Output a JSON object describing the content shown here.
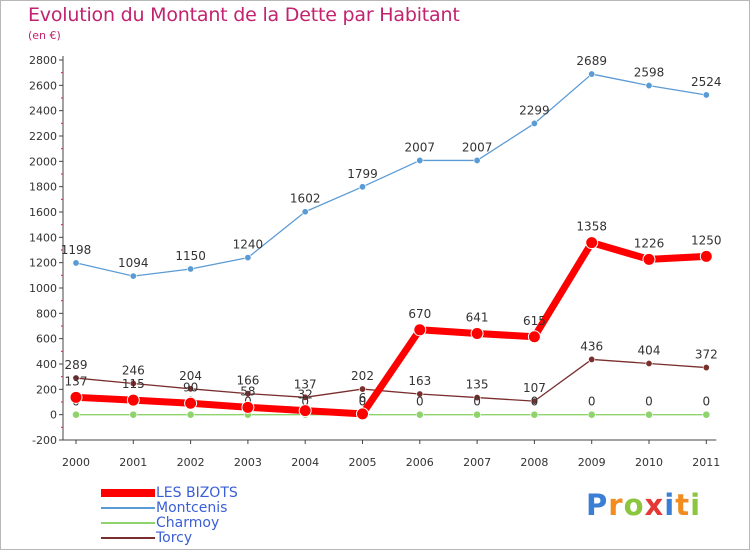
{
  "chart_data": {
    "type": "line",
    "title": "Evolution du Montant de la Dette par Habitant",
    "subtitle": "(en €)",
    "categories": [
      "2000",
      "2001",
      "2002",
      "2003",
      "2004",
      "2005",
      "2006",
      "2007",
      "2008",
      "2009",
      "2010",
      "2011"
    ],
    "ylim": [
      -200,
      2800
    ],
    "yticks": [
      -200,
      0,
      200,
      400,
      600,
      800,
      1000,
      1200,
      1400,
      1600,
      1800,
      2000,
      2200,
      2400,
      2600,
      2800
    ],
    "grid": false,
    "legend_position": "bottom-left",
    "series": [
      {
        "name": "Montcenis",
        "color": "#5b9bd5",
        "values": [
          1198,
          1094,
          1150,
          1240,
          1602,
          1799,
          2007,
          2007,
          2299,
          2689,
          2598,
          2524
        ],
        "labels": [
          "1198",
          "1094",
          "1150",
          "1240",
          "1602",
          "1799",
          "2007",
          "2007",
          "2299",
          "2689",
          "2598",
          "2524"
        ]
      },
      {
        "name": "Torcy",
        "color": "#7a2e2e",
        "values": [
          289,
          246,
          204,
          166,
          137,
          202,
          163,
          135,
          107,
          436,
          404,
          372
        ],
        "labels": [
          "289",
          "246",
          "204",
          "166",
          "137",
          "202",
          "163",
          "135",
          "107",
          "436",
          "404",
          "372"
        ]
      },
      {
        "name": "Charmoy",
        "color": "#8ed36b",
        "values": [
          0,
          0,
          0,
          0,
          0,
          0,
          0,
          0,
          0,
          0,
          0,
          0
        ],
        "labels": [
          "0",
          "0",
          "0",
          "0",
          "0",
          "0",
          "0",
          "0",
          "0",
          "0",
          "0",
          "0"
        ]
      },
      {
        "name": "LES BIZOTS",
        "color": "#ff0000",
        "values": [
          137,
          115,
          90,
          58,
          32,
          6,
          670,
          641,
          615,
          1358,
          1226,
          1250
        ],
        "labels": [
          "137",
          "115",
          "90",
          "58",
          "32",
          "6",
          "670",
          "641",
          "615",
          "1358",
          "1226",
          "1250"
        ]
      }
    ],
    "legend": [
      {
        "name": "LES BIZOTS",
        "color": "#ff0000"
      },
      {
        "name": "Montcenis",
        "color": "#5b9bd5"
      },
      {
        "name": "Charmoy",
        "color": "#8ed36b"
      },
      {
        "name": "Torcy",
        "color": "#7a2e2e"
      }
    ]
  },
  "brand": {
    "letters": [
      "P",
      "r",
      "o",
      "x",
      "i",
      "t",
      "i"
    ],
    "colors": [
      "#3a7fd5",
      "#f28c1f",
      "#8cc63f",
      "#e53935",
      "#3a7fd5",
      "#f28c1f",
      "#8cc63f"
    ]
  }
}
